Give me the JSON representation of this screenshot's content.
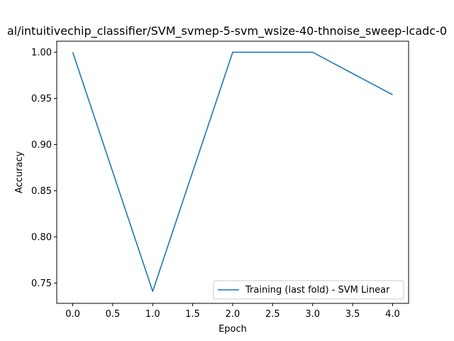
{
  "chart_data": {
    "type": "line",
    "title": "al/intuitivechip_classifier/SVM_svmep-5-svm_wsize-40-thnoise_sweep-lcadc-0",
    "xlabel": "Epoch",
    "ylabel": "Accuracy",
    "xlim": [
      -0.2,
      4.2
    ],
    "ylim": [
      0.728,
      1.012
    ],
    "xticks": [
      0.0,
      0.5,
      1.0,
      1.5,
      2.0,
      2.5,
      3.0,
      3.5,
      4.0
    ],
    "xtick_labels": [
      "0.0",
      "0.5",
      "1.0",
      "1.5",
      "2.0",
      "2.5",
      "3.0",
      "3.5",
      "4.0"
    ],
    "yticks": [
      0.75,
      0.8,
      0.85,
      0.9,
      0.95,
      1.0
    ],
    "ytick_labels": [
      "0.75",
      "0.80",
      "0.85",
      "0.90",
      "0.95",
      "1.00"
    ],
    "grid": false,
    "legend_position": "bottom-right",
    "series": [
      {
        "name": "Training (last fold) - SVM Linear",
        "color": "#1f77b4",
        "x": [
          0,
          1,
          2,
          3,
          4
        ],
        "y": [
          1.0,
          0.741,
          1.0,
          1.0,
          0.954
        ]
      }
    ]
  }
}
